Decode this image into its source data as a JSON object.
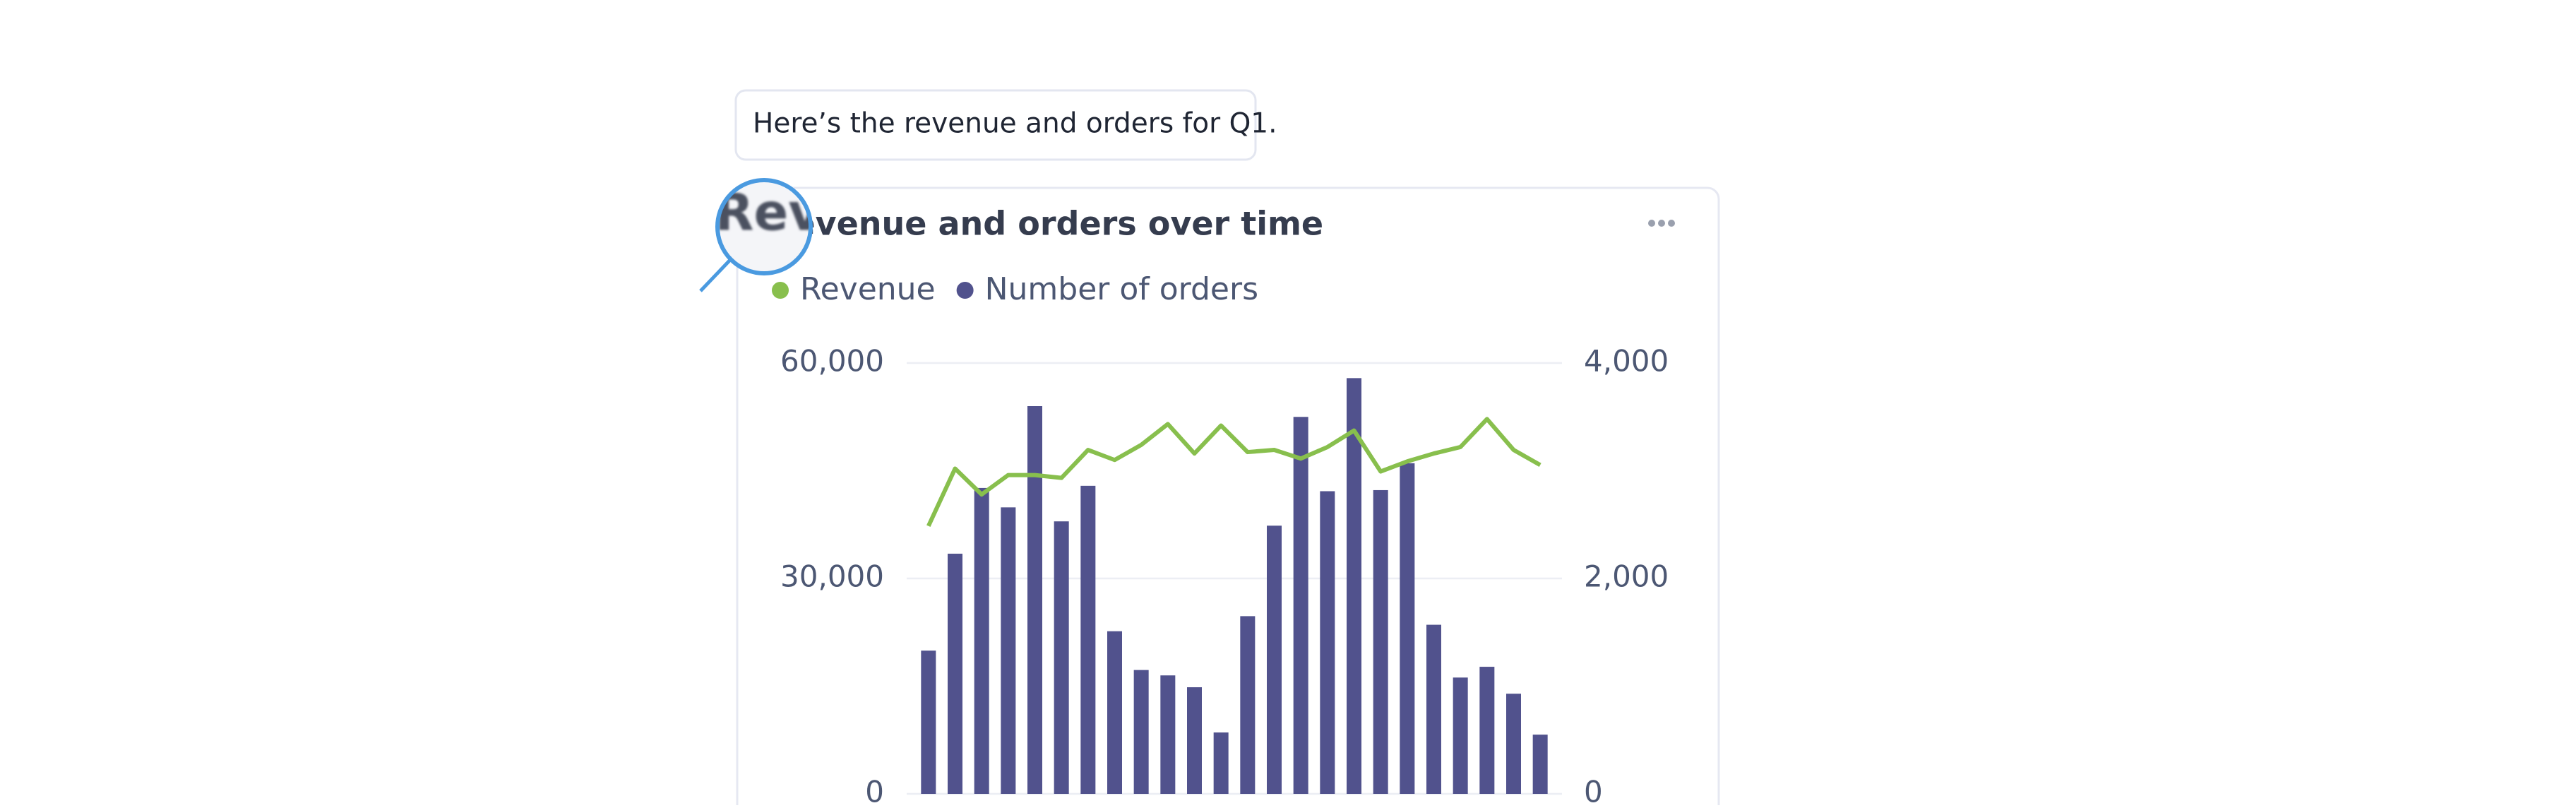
{
  "message": "Here’s the revenue and orders for Q1.",
  "chart_data": {
    "type": "combo",
    "title": "Revenue and orders over time",
    "series": [
      {
        "name": "Revenue",
        "type": "line",
        "color": "#88bf4d",
        "values": [
          37300,
          45300,
          41700,
          44400,
          44400,
          44000,
          47900,
          46500,
          48600,
          51500,
          47400,
          51300,
          47600,
          47900,
          46700,
          48300,
          50600,
          44900,
          46300,
          47400,
          48300,
          52200,
          47900,
          45800
        ]
      },
      {
        "name": "Number of orders",
        "type": "bar",
        "axis": "y2",
        "color": "#51528d",
        "values": [
          1330,
          2230,
          2840,
          2660,
          3600,
          2530,
          2860,
          1510,
          1150,
          1100,
          990,
          570,
          1650,
          2490,
          3500,
          2810,
          3860,
          2820,
          3070,
          1570,
          1080,
          1180,
          930,
          550
        ]
      }
    ],
    "ylim": [
      0,
      60000
    ],
    "yticks": [
      0,
      {
        "value": 30000,
        "label": "30,000"
      },
      {
        "value": 60000,
        "label": "60,000"
      }
    ],
    "y2lim": [
      0,
      4000
    ],
    "y2ticks": [
      0,
      {
        "value": 2000,
        "label": "2,000"
      },
      {
        "value": 4000,
        "label": "4,000"
      }
    ],
    "grid": true
  }
}
